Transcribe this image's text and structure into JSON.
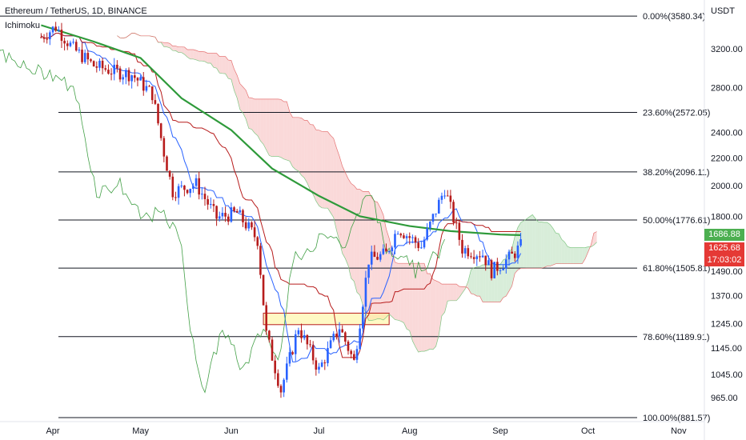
{
  "header": {
    "title": "Ethereum / TetherUS, 1D, BINANCE",
    "indicator": "Ichimoku"
  },
  "price_axis": {
    "unit": "USDT",
    "ticks": [
      "3200.00",
      "2800.00",
      "2400.00",
      "2200.00",
      "2000.00",
      "1800.00",
      "1490.00",
      "1370.00",
      "1245.00",
      "1145.00",
      "1045.00",
      "965.00"
    ],
    "tags": {
      "green_value": "1686.88",
      "red_value": "1625.68",
      "red_countdown": "17:03:02"
    }
  },
  "time_axis": {
    "labels": [
      "Apr",
      "May",
      "Jun",
      "Jul",
      "Aug",
      "Sep",
      "Oct",
      "Nov"
    ]
  },
  "fib_levels": [
    {
      "label": "0.00%(3580.34)",
      "price": 3580.34
    },
    {
      "label": "23.60%(2572.05)",
      "price": 2572.05
    },
    {
      "label": "38.20%(2096.11)",
      "price": 2096.11
    },
    {
      "label": "50.00%(1776.61)",
      "price": 1776.61
    },
    {
      "label": "61.80%(1505.81)",
      "price": 1505.81
    },
    {
      "label": "78.60%(1189.91)",
      "price": 1189.91
    },
    {
      "label": "100.00%(881.57)",
      "price": 881.57
    }
  ],
  "colors": {
    "up": "#2962ff",
    "down": "#b71c1c",
    "tenkan": "#2962ff",
    "kijun": "#b71c1c",
    "chikou": "#43a047",
    "ma": "#2e9a3a",
    "cloud_bull": "#c8e6c9",
    "cloud_bear": "#f8c9c9",
    "support_zone": "#fff59d"
  },
  "chart_data": {
    "type": "candlestick",
    "title": "Ethereum / TetherUS, 1D, BINANCE",
    "ylabel": "USDT",
    "ylim": [
      881.57,
      3620
    ],
    "y_scale": "log",
    "x_labels": [
      "Apr",
      "May",
      "Jun",
      "Jul",
      "Aug",
      "Sep",
      "Oct",
      "Nov"
    ],
    "close_series": [
      {
        "date": "Mar 28",
        "close": 3330
      },
      {
        "date": "Apr 02",
        "close": 3450
      },
      {
        "date": "Apr 08",
        "close": 3200
      },
      {
        "date": "Apr 15",
        "close": 3020
      },
      {
        "date": "Apr 22",
        "close": 2960
      },
      {
        "date": "Apr 28",
        "close": 2930
      },
      {
        "date": "May 05",
        "close": 2740
      },
      {
        "date": "May 09",
        "close": 2240
      },
      {
        "date": "May 12",
        "close": 1960
      },
      {
        "date": "May 20",
        "close": 2010
      },
      {
        "date": "May 27",
        "close": 1790
      },
      {
        "date": "Jun 03",
        "close": 1820
      },
      {
        "date": "Jun 10",
        "close": 1660
      },
      {
        "date": "Jun 13",
        "close": 1200
      },
      {
        "date": "Jun 18",
        "close": 990
      },
      {
        "date": "Jun 24",
        "close": 1230
      },
      {
        "date": "Jul 01",
        "close": 1060
      },
      {
        "date": "Jul 08",
        "close": 1230
      },
      {
        "date": "Jul 13",
        "close": 1090
      },
      {
        "date": "Jul 18",
        "close": 1550
      },
      {
        "date": "Jul 24",
        "close": 1580
      },
      {
        "date": "Jul 28",
        "close": 1730
      },
      {
        "date": "Aug 05",
        "close": 1620
      },
      {
        "date": "Aug 13",
        "close": 1980
      },
      {
        "date": "Aug 19",
        "close": 1610
      },
      {
        "date": "Aug 26",
        "close": 1580
      },
      {
        "date": "Aug 29",
        "close": 1490
      },
      {
        "date": "Sep 05",
        "close": 1570
      },
      {
        "date": "Sep 08",
        "close": 1625
      }
    ],
    "moving_average": [
      {
        "date": "Mar 28",
        "value": 3470
      },
      {
        "date": "Apr 15",
        "value": 3280
      },
      {
        "date": "May 01",
        "value": 3100
      },
      {
        "date": "May 15",
        "value": 2700
      },
      {
        "date": "Jun 01",
        "value": 2420
      },
      {
        "date": "Jun 15",
        "value": 2120
      },
      {
        "date": "Jul 01",
        "value": 1930
      },
      {
        "date": "Jul 15",
        "value": 1800
      },
      {
        "date": "Aug 01",
        "value": 1740
      },
      {
        "date": "Aug 15",
        "value": 1710
      },
      {
        "date": "Sep 01",
        "value": 1690
      },
      {
        "date": "Sep 08",
        "value": 1686.88
      }
    ],
    "support_zone": {
      "from": "Jun 12",
      "to": "Jul 25",
      "low": 1240,
      "high": 1290
    },
    "last_price": 1625.68,
    "ma_last": 1686.88,
    "countdown": "17:03:02"
  }
}
